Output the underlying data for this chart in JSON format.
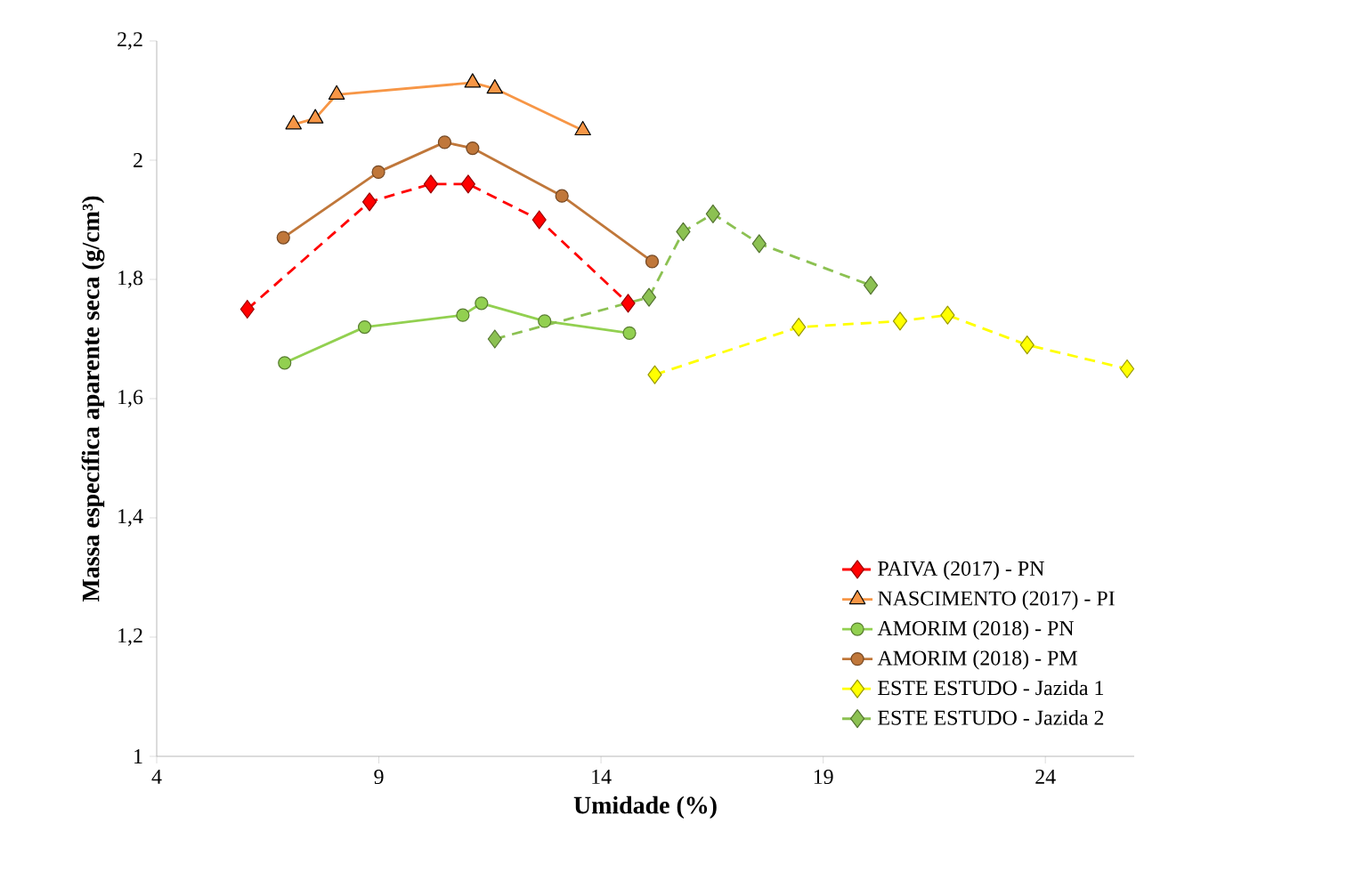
{
  "chart_data": {
    "type": "line",
    "xlabel": "Umidade (%)",
    "ylabel": "Massa específica aparente seca (g/cm³)",
    "xlim": [
      4,
      26
    ],
    "xticks": [
      4,
      9,
      14,
      19,
      24
    ],
    "ylim": [
      1,
      2.2
    ],
    "yticks": [
      1,
      {
        "value": 1.2,
        "label": "1,2"
      },
      {
        "value": 1.4,
        "label": "1,4"
      },
      {
        "value": 1.6,
        "label": "1,6"
      },
      {
        "value": 1.8,
        "label": "1,8"
      },
      2,
      {
        "value": 2.2,
        "label": "2,2"
      }
    ],
    "legend": "bottom right",
    "series": [
      {
        "name": "PAIVA (2017) - PN",
        "color": "#ff0000",
        "marker": "diamond",
        "line_style": "dashed",
        "x": [
          6.04,
          8.79,
          10.17,
          11.01,
          12.61,
          14.61
        ],
        "values": [
          1.75,
          1.93,
          1.96,
          1.96,
          1.9,
          1.76
        ]
      },
      {
        "name": "NASCIMENTO (2017) - PI",
        "color": "#f79646",
        "marker": "triangle",
        "line_style": "solid",
        "x": [
          7.08,
          7.57,
          8.05,
          11.11,
          11.61,
          13.59
        ],
        "values": [
          2.06,
          2.07,
          2.11,
          2.13,
          2.12,
          2.05
        ]
      },
      {
        "name": "AMORIM (2018) - PN",
        "color": "#92d050",
        "marker": "circle",
        "line_style": "solid",
        "x": [
          6.88,
          8.68,
          10.89,
          11.31,
          12.73,
          14.64
        ],
        "values": [
          1.66,
          1.72,
          1.74,
          1.76,
          1.73,
          1.71
        ]
      },
      {
        "name": "AMORIM (2018) - PM",
        "color": "#c0773a",
        "marker": "circle",
        "line_style": "solid",
        "x": [
          6.85,
          8.99,
          10.48,
          11.11,
          13.12,
          15.15
        ],
        "values": [
          1.87,
          1.98,
          2.03,
          2.02,
          1.94,
          1.83
        ]
      },
      {
        "name": "ESTE ESTUDO - Jazida 1",
        "color": "#ffff00",
        "marker": "diamond",
        "line_style": "dashed",
        "x": [
          15.21,
          18.45,
          20.73,
          21.8,
          23.59,
          25.84
        ],
        "values": [
          1.64,
          1.72,
          1.73,
          1.74,
          1.69,
          1.65
        ]
      },
      {
        "name": "ESTE ESTUDO - Jazida 2",
        "color": "#8cc152",
        "marker": "diamond",
        "line_style": "dashed",
        "x": [
          11.61,
          15.08,
          15.85,
          16.52,
          17.56,
          20.07
        ],
        "values": [
          1.7,
          1.77,
          1.88,
          1.91,
          1.86,
          1.79
        ]
      }
    ]
  }
}
